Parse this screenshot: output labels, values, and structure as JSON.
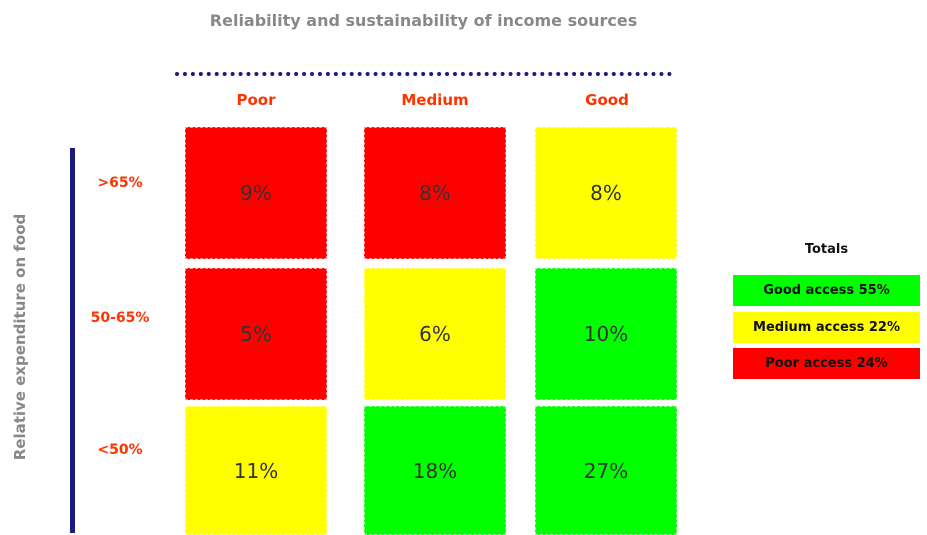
{
  "title": "Reliability and sustainability of income sources",
  "y_axis_title": "Relative expenditure on food",
  "columns": [
    "Poor",
    "Medium",
    "Good"
  ],
  "rows": [
    {
      "label": ">65%",
      "cells": [
        "9%",
        "8%",
        "8%"
      ]
    },
    {
      "label": "50-65%",
      "cells": [
        "5%",
        "6%",
        "10%"
      ]
    },
    {
      "label": "<50%",
      "cells": [
        "11%",
        "18%",
        "27%"
      ]
    }
  ],
  "totals": {
    "title": "Totals",
    "items": [
      "Good access 55%",
      "Medium access 22%",
      "Poor access 24%"
    ]
  }
}
